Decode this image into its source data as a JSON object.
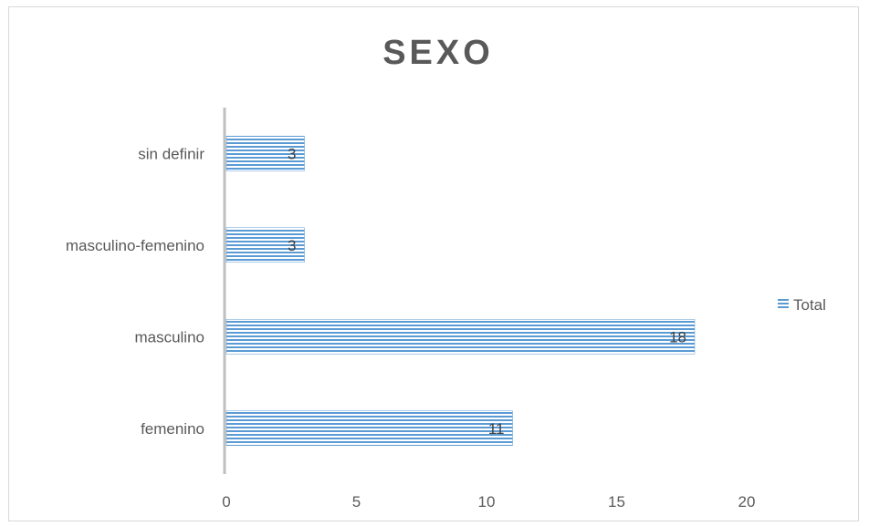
{
  "chart_data": {
    "type": "bar",
    "orientation": "horizontal",
    "title": "SEXO",
    "categories": [
      "femenino",
      "masculino",
      "masculino-femenino",
      "sin definir"
    ],
    "series": [
      {
        "name": "Total",
        "values": [
          11,
          18,
          3,
          3
        ]
      }
    ],
    "data_labels": [
      "11",
      "18",
      "3",
      "3"
    ],
    "xlim": [
      0,
      20
    ],
    "x_ticks": [
      "0",
      "5",
      "10",
      "15",
      "20"
    ],
    "xlabel": "",
    "ylabel": "",
    "grid": false,
    "legend_position": "right",
    "colors": {
      "bar_fill": "#9dc3e6",
      "bar_stripe": "#5b9bd5",
      "axis": "#bfbfbf",
      "text": "#595959"
    }
  }
}
